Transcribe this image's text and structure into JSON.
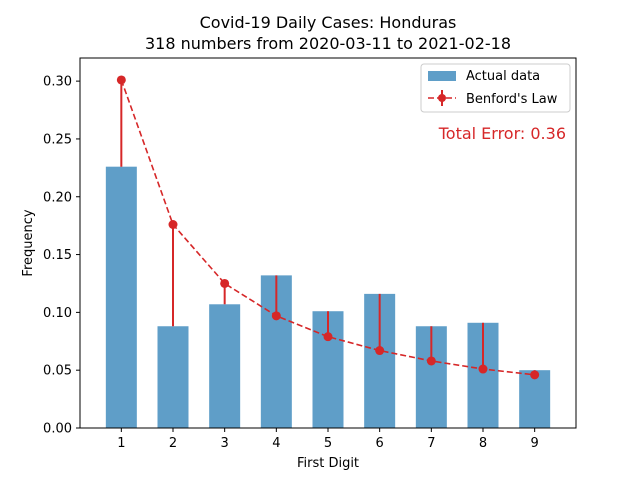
{
  "chart_data": {
    "type": "bar",
    "title": "Covid-19 Daily Cases: Honduras",
    "subtitle": "318 numbers from 2020-03-11 to 2021-02-18",
    "xlabel": "First Digit",
    "ylabel": "Frequency",
    "categories": [
      "1",
      "2",
      "3",
      "4",
      "5",
      "6",
      "7",
      "8",
      "9"
    ],
    "ylim": [
      0,
      0.32
    ],
    "yticks": [
      "0.00",
      "0.05",
      "0.10",
      "0.15",
      "0.20",
      "0.25",
      "0.30"
    ],
    "grid": false,
    "legend_position": "top-right",
    "series": [
      {
        "name": "Actual data",
        "type": "bar",
        "color": "#5f9ec8",
        "values": [
          0.226,
          0.088,
          0.107,
          0.132,
          0.101,
          0.116,
          0.088,
          0.091,
          0.05
        ]
      },
      {
        "name": "Benford's Law",
        "type": "line",
        "style": "dashed",
        "marker": "circle",
        "color": "#d62728",
        "values": [
          0.301,
          0.176,
          0.125,
          0.097,
          0.079,
          0.067,
          0.058,
          0.051,
          0.046
        ]
      }
    ],
    "annotation": {
      "text": "Total Error: 0.36",
      "color": "#d62728"
    }
  }
}
